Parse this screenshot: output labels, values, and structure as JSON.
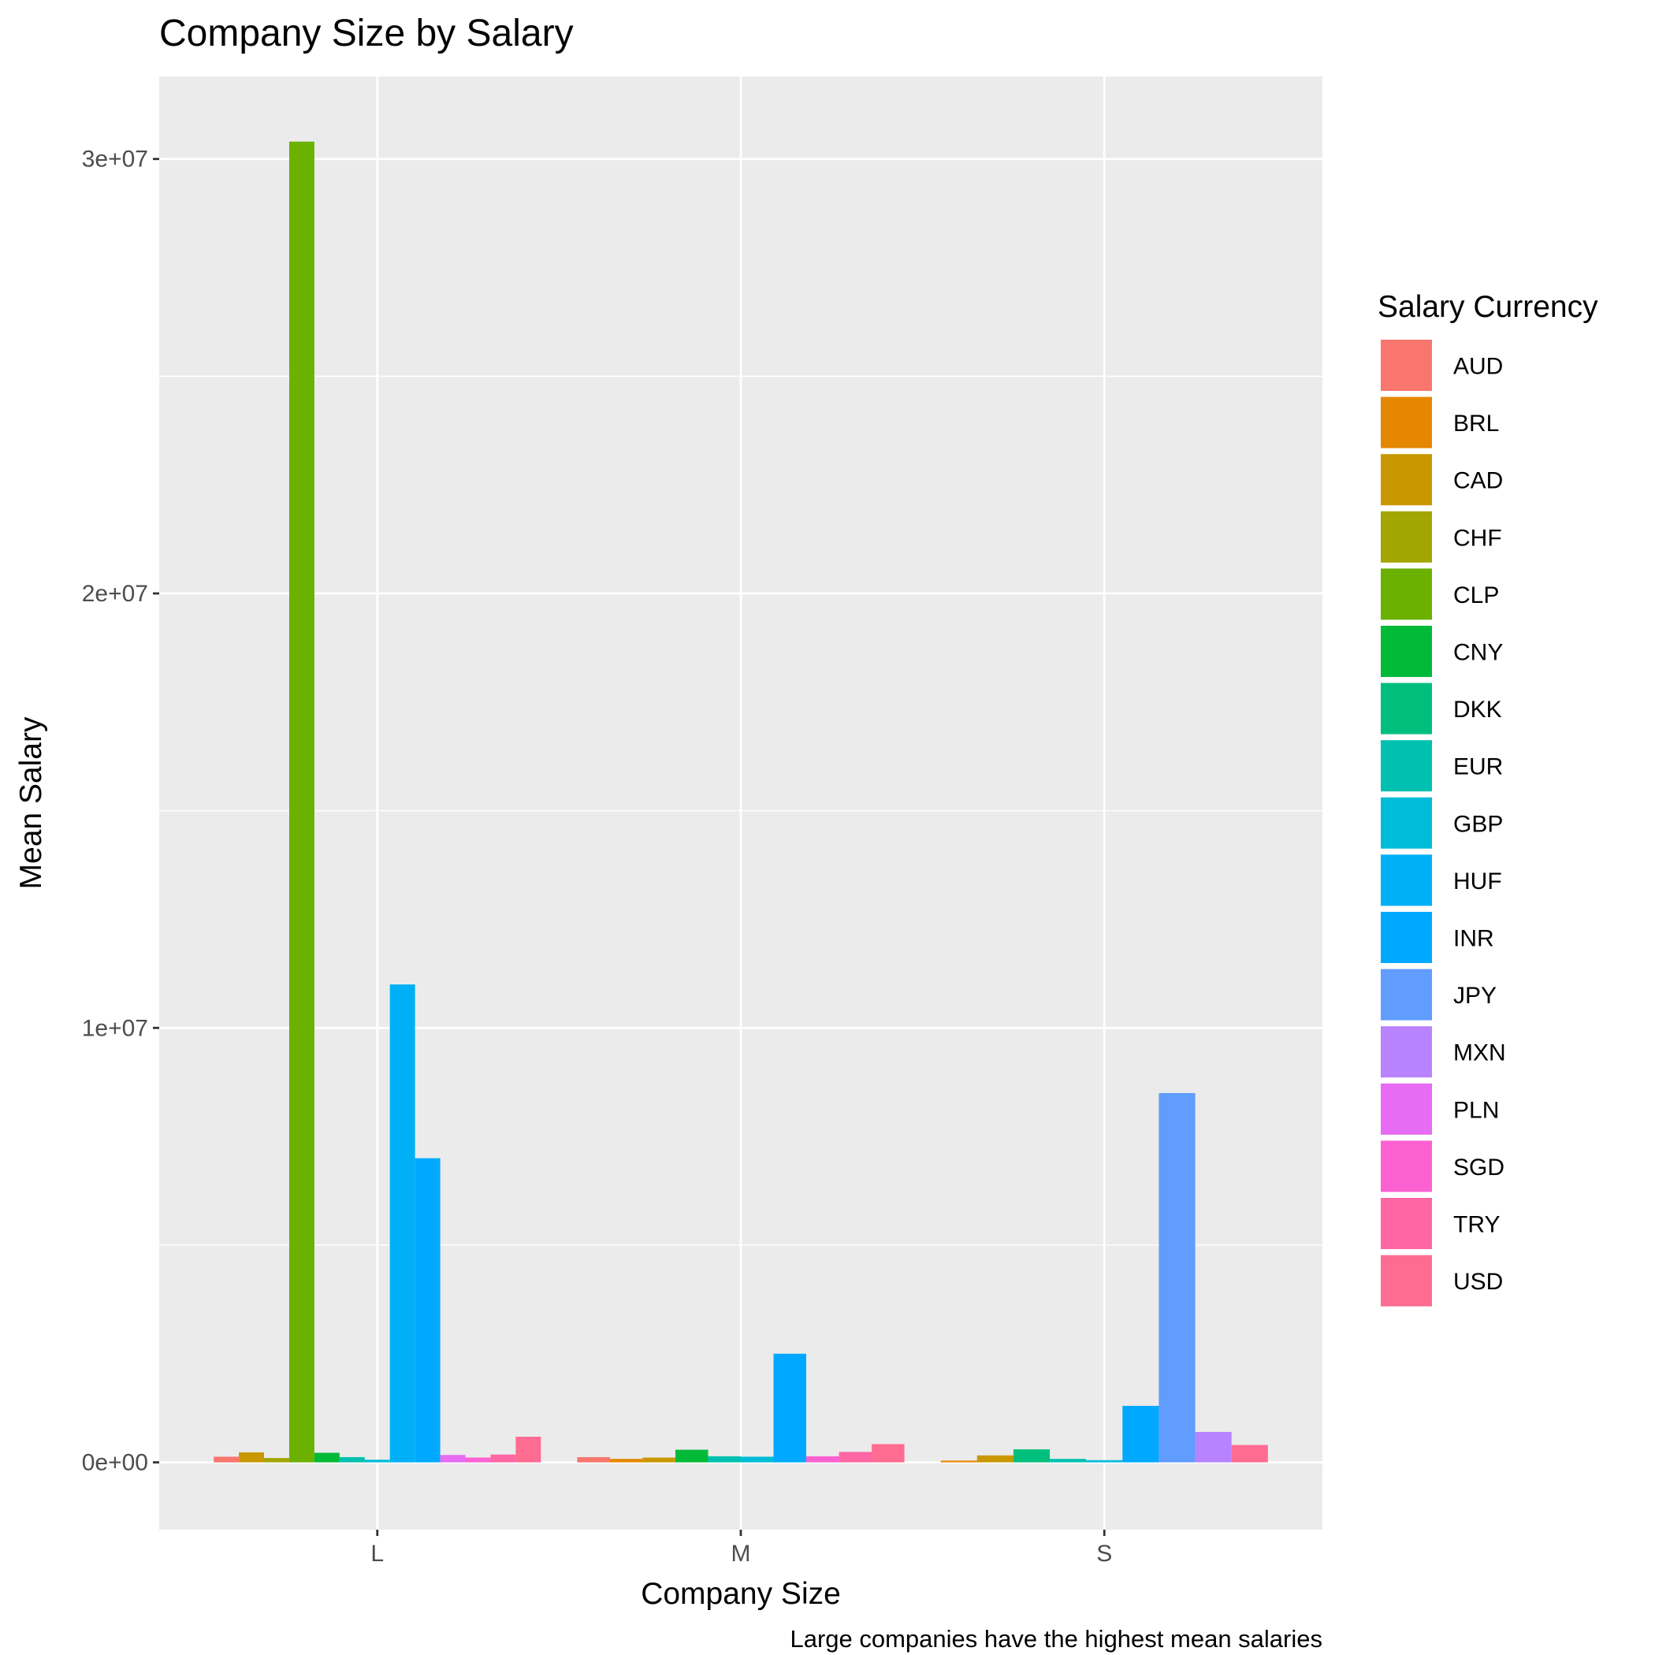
{
  "chart_data": {
    "type": "bar",
    "title": "Company Size by Salary",
    "xlabel": "Company Size",
    "ylabel": "Mean Salary",
    "caption": "Large companies have the highest mean salaries",
    "categories": [
      "L",
      "M",
      "S"
    ],
    "y_ticks": [
      0,
      10000000,
      20000000,
      30000000
    ],
    "y_tick_labels": [
      "0e+00",
      "1e+07",
      "2e+07",
      "3e+07"
    ],
    "ylim": [
      -1550000,
      31900000
    ],
    "grid": true,
    "legend": {
      "title": "Salary Currency",
      "position": "right"
    },
    "series": [
      {
        "name": "AUD",
        "color": "#F8766D",
        "values": [
          130000,
          120000,
          null
        ]
      },
      {
        "name": "BRL",
        "color": "#E58700",
        "values": [
          null,
          80000,
          40000
        ]
      },
      {
        "name": "CAD",
        "color": "#C99800",
        "values": [
          230000,
          110000,
          160000
        ]
      },
      {
        "name": "CHF",
        "color": "#A3A500",
        "values": [
          100000,
          null,
          null
        ]
      },
      {
        "name": "CLP",
        "color": "#6BB100",
        "values": [
          30400000,
          null,
          null
        ]
      },
      {
        "name": "CNY",
        "color": "#00BA38",
        "values": [
          220000,
          290000,
          null
        ]
      },
      {
        "name": "DKK",
        "color": "#00BF7D",
        "values": [
          null,
          null,
          300000
        ]
      },
      {
        "name": "EUR",
        "color": "#00C0AF",
        "values": [
          120000,
          140000,
          80000
        ]
      },
      {
        "name": "GBP",
        "color": "#00BCD8",
        "values": [
          60000,
          130000,
          50000
        ]
      },
      {
        "name": "HUF",
        "color": "#00B0F6",
        "values": [
          11000000,
          null,
          null
        ]
      },
      {
        "name": "INR",
        "color": "#00A9FF",
        "values": [
          7000000,
          2500000,
          1300000
        ]
      },
      {
        "name": "JPY",
        "color": "#619CFF",
        "values": [
          null,
          null,
          8500000
        ]
      },
      {
        "name": "MXN",
        "color": "#B983FF",
        "values": [
          null,
          null,
          700000
        ]
      },
      {
        "name": "PLN",
        "color": "#E76BF3",
        "values": [
          170000,
          null,
          null
        ]
      },
      {
        "name": "SGD",
        "color": "#FD61D1",
        "values": [
          110000,
          140000,
          null
        ]
      },
      {
        "name": "TRY",
        "color": "#FF67A4",
        "values": [
          180000,
          240000,
          null
        ]
      },
      {
        "name": "USD",
        "color": "#FF6C91",
        "values": [
          590000,
          420000,
          400000
        ]
      }
    ],
    "bar_groups": [
      [
        "AUD",
        "CAD",
        "CHF",
        "CLP",
        "CNY",
        "EUR",
        "GBP",
        "HUF",
        "INR",
        "PLN",
        "SGD",
        "TRY",
        "USD"
      ],
      [
        "AUD",
        "BRL",
        "CAD",
        "CNY",
        "EUR",
        "GBP",
        "INR",
        "SGD",
        "TRY",
        "USD"
      ],
      [
        "BRL",
        "CAD",
        "DKK",
        "EUR",
        "GBP",
        "INR",
        "JPY",
        "MXN",
        "USD"
      ]
    ]
  }
}
